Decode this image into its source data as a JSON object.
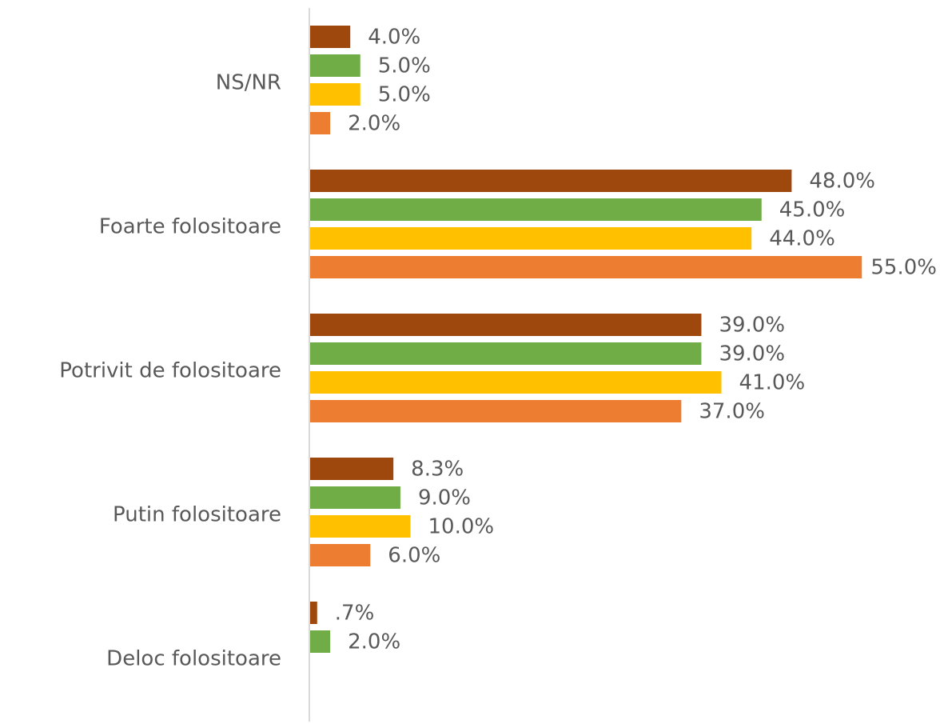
{
  "chart_data": {
    "type": "bar",
    "orientation": "horizontal",
    "categories": [
      "NS/NR",
      "Foarte folositoare",
      "Potrivit de folositoare",
      "Putin folositoare",
      "Deloc folositoare"
    ],
    "series": [
      {
        "color": "#9e480e",
        "values": [
          4.0,
          48.0,
          39.0,
          8.3,
          0.7
        ],
        "value_labels": [
          "4.0%",
          "48.0%",
          "39.0%",
          "8.3%",
          ".7%"
        ]
      },
      {
        "color": "#70ad47",
        "values": [
          5.0,
          45.0,
          39.0,
          9.0,
          2.0
        ],
        "value_labels": [
          "5.0%",
          "45.0%",
          "39.0%",
          "9.0%",
          "2.0%"
        ]
      },
      {
        "color": "#ffc000",
        "values": [
          5.0,
          44.0,
          41.0,
          10.0,
          null
        ],
        "value_labels": [
          "5.0%",
          "44.0%",
          "41.0%",
          "10.0%",
          null
        ]
      },
      {
        "color": "#ed7d31",
        "values": [
          2.0,
          55.0,
          37.0,
          6.0,
          null
        ],
        "value_labels": [
          "2.0%",
          "55.0%",
          "37.0%",
          "6.0%",
          null
        ]
      }
    ]
  }
}
